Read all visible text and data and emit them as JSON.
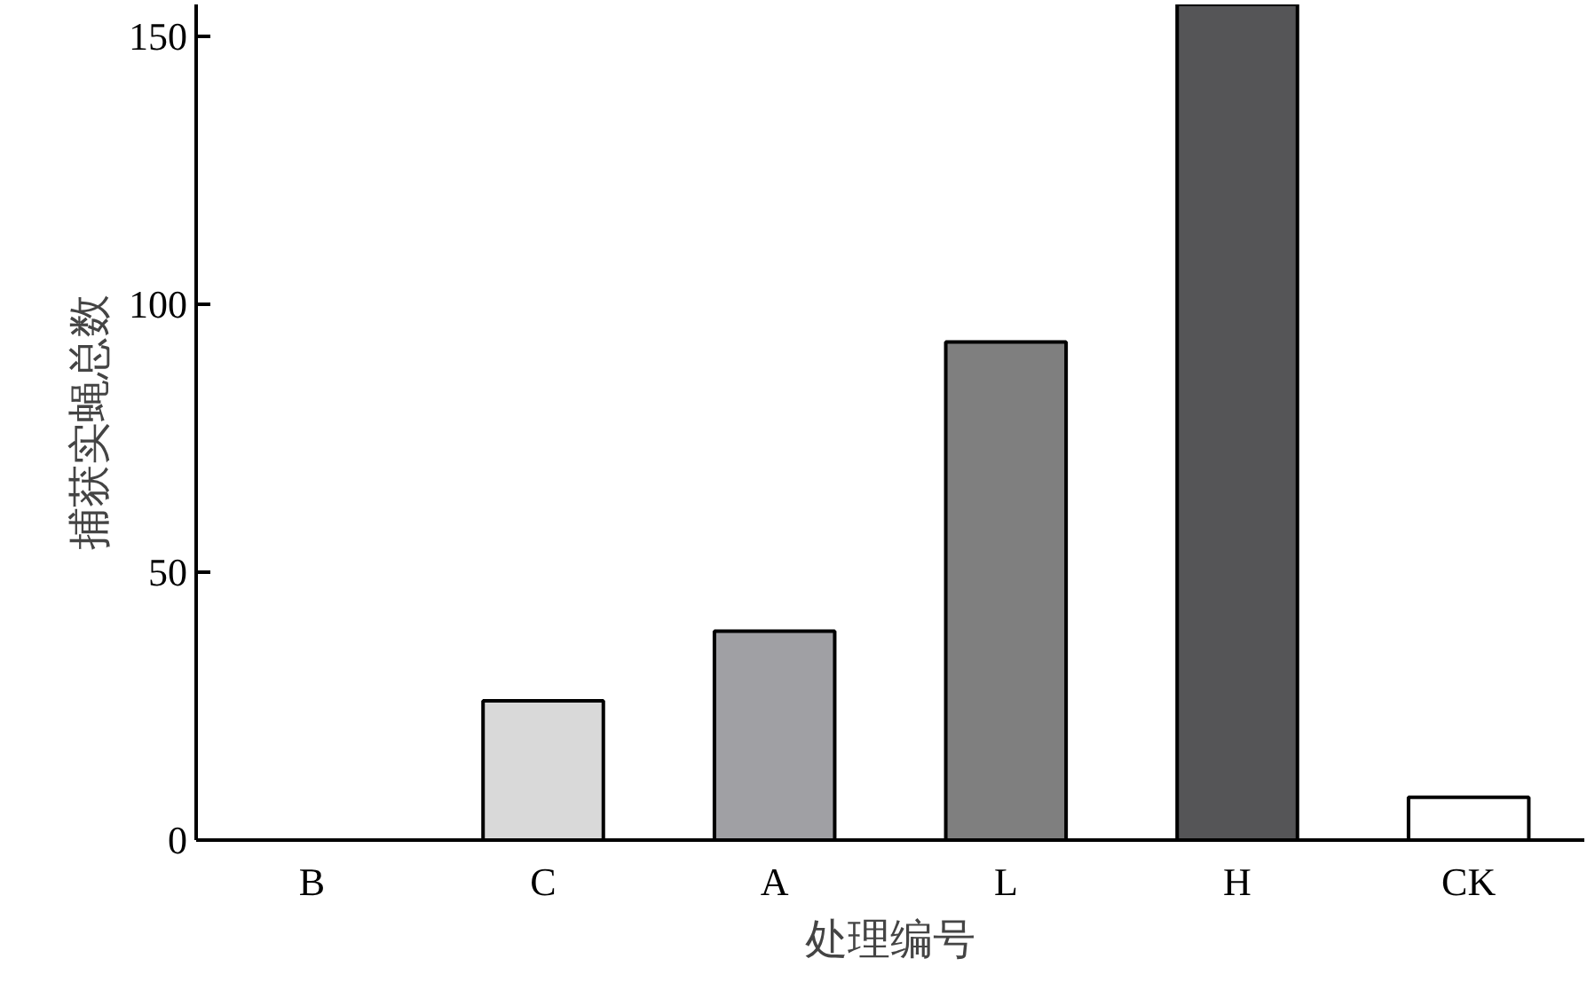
{
  "chart_data": {
    "type": "bar",
    "xlabel": "处理编号",
    "ylabel": "捕获实蝇总数",
    "categories": [
      "B",
      "C",
      "A",
      "L",
      "H",
      "CK"
    ],
    "values": [
      0,
      26,
      39,
      93,
      156,
      8
    ],
    "colors": [
      "#000000",
      "#d9d9d9",
      "#a0a0a4",
      "#7f7f7f",
      "#555557",
      "#ffffff"
    ],
    "ylim": [
      0,
      156
    ],
    "yticks": [
      0,
      50,
      100,
      150
    ],
    "grid": false
  }
}
